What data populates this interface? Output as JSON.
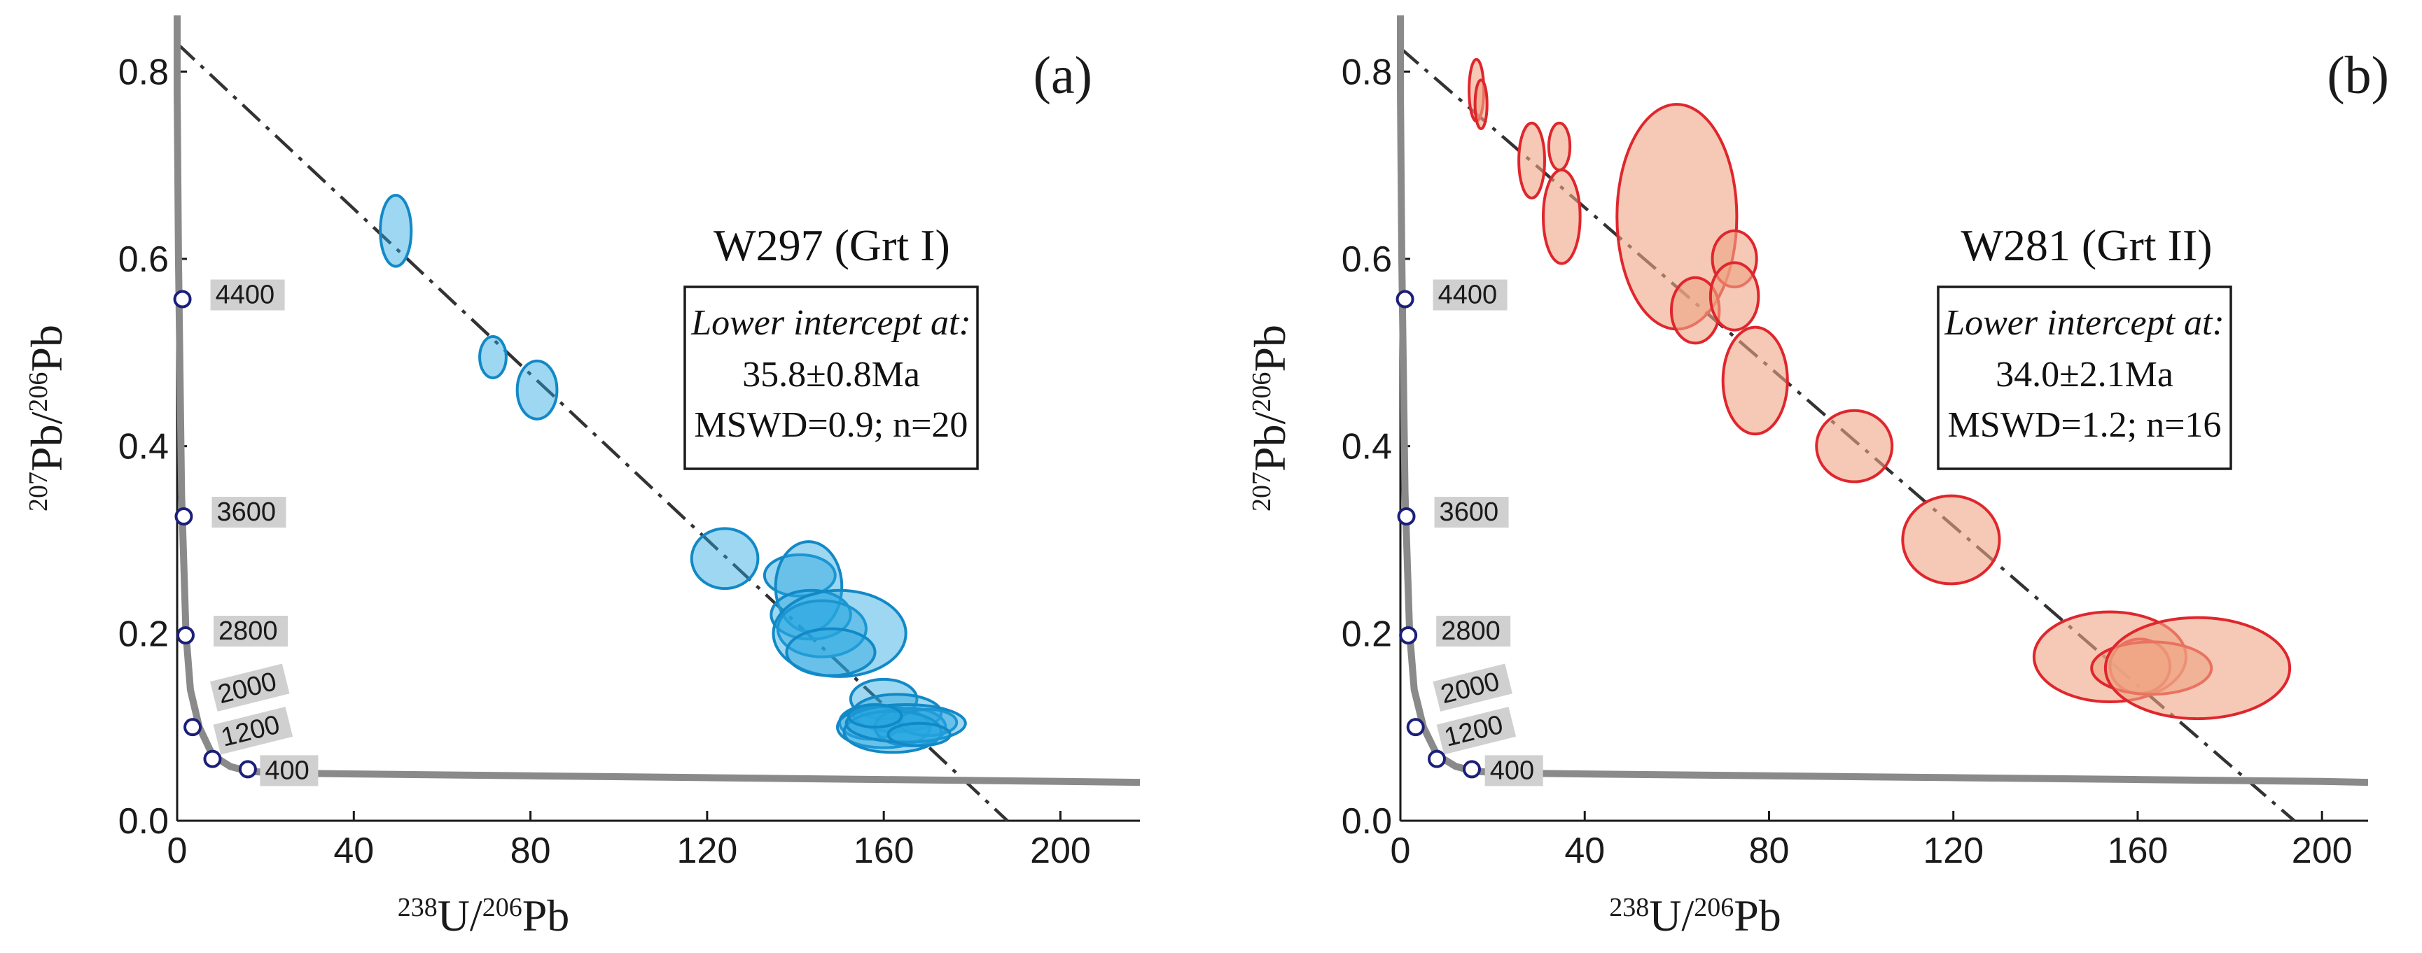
{
  "colors": {
    "panel_a_fill": "#29a6e0",
    "panel_a_stroke": "#1289c7",
    "panel_b_fill": "#eea584",
    "panel_b_stroke": "#e0262d",
    "concordia": "#8a8a8a",
    "marker_stroke": "#1b1f7a"
  },
  "chart_data": [
    {
      "type": "scatter",
      "panel_label": "(a)",
      "title": "W297 (Grt I)",
      "xlabel": "238U/206Pb",
      "ylabel": "207Pb/206Pb",
      "xlim": [
        0,
        218
      ],
      "ylim": [
        0,
        0.86
      ],
      "xticks": [
        0,
        40,
        80,
        120,
        160,
        200
      ],
      "xtick_labels": [
        "0",
        "40",
        "80",
        "120",
        "160",
        "200"
      ],
      "yticks": [
        0.0,
        0.2,
        0.4,
        0.6,
        0.8
      ],
      "ytick_labels": [
        "0.0",
        "0.2",
        "0.4",
        "0.6",
        "0.8"
      ],
      "intercept_box": {
        "heading": "Lower intercept at:",
        "age": "35.8±0.8Ma",
        "stats": "MSWD=0.9; n=20"
      },
      "regression": {
        "y_intercept": 0.83,
        "x_intercept": 188
      },
      "concordia_ages": [
        {
          "label": "4400",
          "x": 1.2,
          "y": 0.557
        },
        {
          "label": "3600",
          "x": 1.5,
          "y": 0.325
        },
        {
          "label": "2800",
          "x": 1.9,
          "y": 0.198
        },
        {
          "label": "2000",
          "x": 2.8,
          "y": 0.123
        },
        {
          "label": "1200",
          "x": 4.8,
          "y": 0.08
        },
        {
          "label": "400",
          "x": 15.6,
          "y": 0.055
        }
      ],
      "concordia_markers": [
        {
          "x": 1.2,
          "y": 0.557
        },
        {
          "x": 1.5,
          "y": 0.325
        },
        {
          "x": 1.9,
          "y": 0.198
        },
        {
          "x": 3.5,
          "y": 0.1
        },
        {
          "x": 8.0,
          "y": 0.066
        },
        {
          "x": 16.0,
          "y": 0.055
        }
      ],
      "concordia_curve": {
        "x": [
          0,
          0,
          0.3,
          1,
          2,
          3,
          5,
          8,
          12,
          16,
          22,
          40,
          80,
          120,
          160,
          200,
          218
        ],
        "y": [
          0.86,
          0.78,
          0.6,
          0.35,
          0.2,
          0.14,
          0.1,
          0.07,
          0.058,
          0.053,
          0.051,
          0.05,
          0.048,
          0.046,
          0.044,
          0.042,
          0.041
        ]
      },
      "ellipses": [
        {
          "x": 49.5,
          "y": 0.63,
          "sx": 3.5,
          "sy": 0.038
        },
        {
          "x": 71.5,
          "y": 0.495,
          "sx": 3.0,
          "sy": 0.022
        },
        {
          "x": 81.5,
          "y": 0.46,
          "sx": 4.5,
          "sy": 0.031
        },
        {
          "x": 124,
          "y": 0.28,
          "sx": 7.5,
          "sy": 0.032
        },
        {
          "x": 141,
          "y": 0.262,
          "sx": 8.0,
          "sy": 0.022
        },
        {
          "x": 143,
          "y": 0.25,
          "sx": 7.5,
          "sy": 0.048
        },
        {
          "x": 143.5,
          "y": 0.22,
          "sx": 9.0,
          "sy": 0.026
        },
        {
          "x": 146,
          "y": 0.205,
          "sx": 10.0,
          "sy": 0.03
        },
        {
          "x": 150,
          "y": 0.2,
          "sx": 15.0,
          "sy": 0.046
        },
        {
          "x": 148,
          "y": 0.18,
          "sx": 10.0,
          "sy": 0.025
        },
        {
          "x": 160,
          "y": 0.13,
          "sx": 7.5,
          "sy": 0.021
        },
        {
          "x": 163,
          "y": 0.115,
          "sx": 10.0,
          "sy": 0.02
        },
        {
          "x": 157,
          "y": 0.105,
          "sx": 7.0,
          "sy": 0.018
        },
        {
          "x": 160,
          "y": 0.1,
          "sx": 10.5,
          "sy": 0.022
        },
        {
          "x": 166,
          "y": 0.1,
          "sx": 8.0,
          "sy": 0.02
        },
        {
          "x": 170,
          "y": 0.105,
          "sx": 6.5,
          "sy": 0.014
        },
        {
          "x": 162,
          "y": 0.095,
          "sx": 11.0,
          "sy": 0.022
        },
        {
          "x": 165,
          "y": 0.104,
          "sx": 13.5,
          "sy": 0.02
        },
        {
          "x": 158,
          "y": 0.112,
          "sx": 6.0,
          "sy": 0.012
        },
        {
          "x": 168,
          "y": 0.092,
          "sx": 7.0,
          "sy": 0.012
        }
      ]
    },
    {
      "type": "scatter",
      "panel_label": "(b)",
      "title": "W281 (Grt II)",
      "xlabel": "238U/206Pb",
      "ylabel": "207Pb/206Pb",
      "xlim": [
        0,
        210
      ],
      "ylim": [
        0,
        0.86
      ],
      "xticks": [
        0,
        40,
        80,
        120,
        160,
        200
      ],
      "xtick_labels": [
        "0",
        "40",
        "80",
        "120",
        "160",
        "200"
      ],
      "yticks": [
        0.0,
        0.2,
        0.4,
        0.6,
        0.8
      ],
      "ytick_labels": [
        "0.0",
        "0.2",
        "0.4",
        "0.6",
        "0.8"
      ],
      "intercept_box": {
        "heading": "Lower intercept at:",
        "age": "34.0±2.1Ma",
        "stats": "MSWD=1.2; n=16"
      },
      "regression": {
        "y_intercept": 0.825,
        "x_intercept": 194
      },
      "concordia_ages": [
        {
          "label": "4400",
          "x": 1.0,
          "y": 0.557
        },
        {
          "label": "3600",
          "x": 1.3,
          "y": 0.325
        },
        {
          "label": "2800",
          "x": 1.7,
          "y": 0.198
        },
        {
          "label": "2000",
          "x": 2.6,
          "y": 0.123
        },
        {
          "label": "1200",
          "x": 4.6,
          "y": 0.08
        },
        {
          "label": "400",
          "x": 15.3,
          "y": 0.055
        }
      ],
      "concordia_markers": [
        {
          "x": 1.0,
          "y": 0.557
        },
        {
          "x": 1.3,
          "y": 0.325
        },
        {
          "x": 1.7,
          "y": 0.198
        },
        {
          "x": 3.3,
          "y": 0.1
        },
        {
          "x": 7.9,
          "y": 0.066
        },
        {
          "x": 15.5,
          "y": 0.055
        }
      ],
      "concordia_curve": {
        "x": [
          0,
          0,
          0.3,
          1,
          2,
          3,
          5,
          8,
          12,
          16,
          22,
          40,
          80,
          120,
          160,
          200,
          210
        ],
        "y": [
          0.86,
          0.78,
          0.6,
          0.35,
          0.2,
          0.14,
          0.1,
          0.07,
          0.058,
          0.053,
          0.051,
          0.05,
          0.048,
          0.046,
          0.044,
          0.042,
          0.041
        ]
      },
      "ellipses": [
        {
          "x": 16.5,
          "y": 0.78,
          "sx": 1.6,
          "sy": 0.033
        },
        {
          "x": 17.5,
          "y": 0.765,
          "sx": 1.3,
          "sy": 0.026
        },
        {
          "x": 28.5,
          "y": 0.705,
          "sx": 2.8,
          "sy": 0.04
        },
        {
          "x": 34.5,
          "y": 0.72,
          "sx": 2.3,
          "sy": 0.025
        },
        {
          "x": 35,
          "y": 0.645,
          "sx": 4.0,
          "sy": 0.05
        },
        {
          "x": 60,
          "y": 0.645,
          "sx": 13.0,
          "sy": 0.12
        },
        {
          "x": 64,
          "y": 0.545,
          "sx": 5.2,
          "sy": 0.035
        },
        {
          "x": 72.5,
          "y": 0.6,
          "sx": 4.8,
          "sy": 0.03
        },
        {
          "x": 72.5,
          "y": 0.56,
          "sx": 5.2,
          "sy": 0.036
        },
        {
          "x": 77,
          "y": 0.47,
          "sx": 7.0,
          "sy": 0.057
        },
        {
          "x": 98.5,
          "y": 0.4,
          "sx": 8.2,
          "sy": 0.038
        },
        {
          "x": 119.5,
          "y": 0.3,
          "sx": 10.5,
          "sy": 0.047
        },
        {
          "x": 154,
          "y": 0.175,
          "sx": 16.5,
          "sy": 0.048
        },
        {
          "x": 160.5,
          "y": 0.165,
          "sx": 6.5,
          "sy": 0.029
        },
        {
          "x": 163,
          "y": 0.163,
          "sx": 13.0,
          "sy": 0.028
        },
        {
          "x": 173,
          "y": 0.163,
          "sx": 20.0,
          "sy": 0.054
        }
      ]
    }
  ]
}
